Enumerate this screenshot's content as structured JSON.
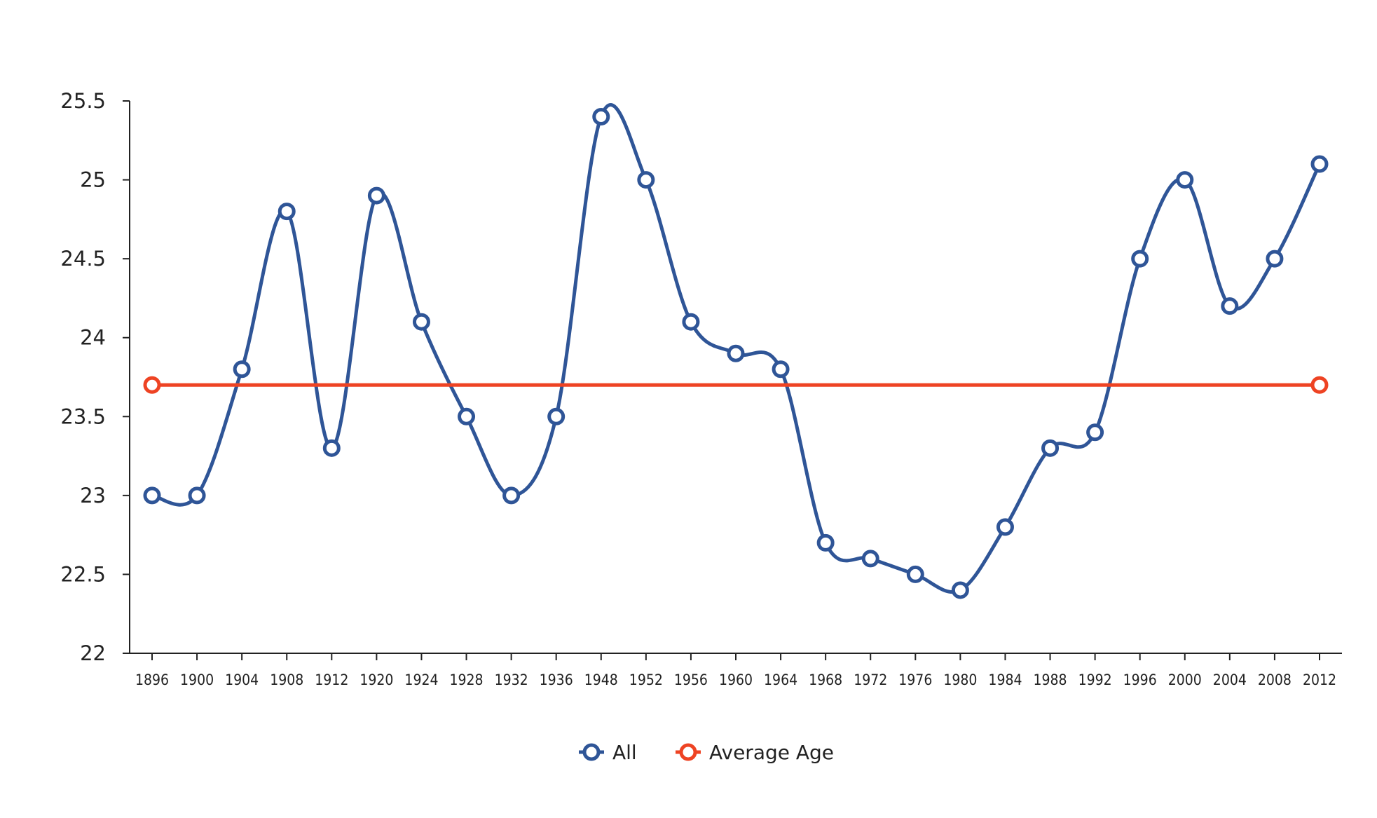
{
  "chart_data": {
    "type": "line",
    "title": "",
    "xlabel": "",
    "ylabel": "",
    "ylim": [
      22,
      25.5
    ],
    "yticks": [
      "22",
      "22.5",
      "23",
      "23.5",
      "24",
      "24.5",
      "25",
      "25.5"
    ],
    "categories": [
      "1896",
      "1900",
      "1904",
      "1908",
      "1912",
      "1920",
      "1924",
      "1928",
      "1932",
      "1936",
      "1948",
      "1952",
      "1956",
      "1960",
      "1964",
      "1968",
      "1972",
      "1976",
      "1980",
      "1984",
      "1988",
      "1992",
      "1996",
      "2000",
      "2004",
      "2008",
      "2012"
    ],
    "grid": false,
    "legend_position": "bottom-center",
    "series": [
      {
        "name": "All",
        "color": "#2f5597",
        "smooth": true,
        "values": [
          23,
          23,
          23.8,
          24.8,
          23.3,
          24.9,
          24.1,
          23.5,
          23,
          23.5,
          25.4,
          25,
          24.1,
          23.9,
          23.8,
          22.7,
          22.6,
          22.5,
          22.4,
          22.8,
          23.3,
          23.4,
          24.5,
          25,
          24.2,
          24.5,
          25.1
        ]
      },
      {
        "name": "Average Age",
        "color": "#ee4323",
        "smooth": false,
        "points": [
          {
            "category": "1896",
            "value": 23.7
          },
          {
            "category": "2012",
            "value": 23.7
          }
        ]
      }
    ]
  }
}
